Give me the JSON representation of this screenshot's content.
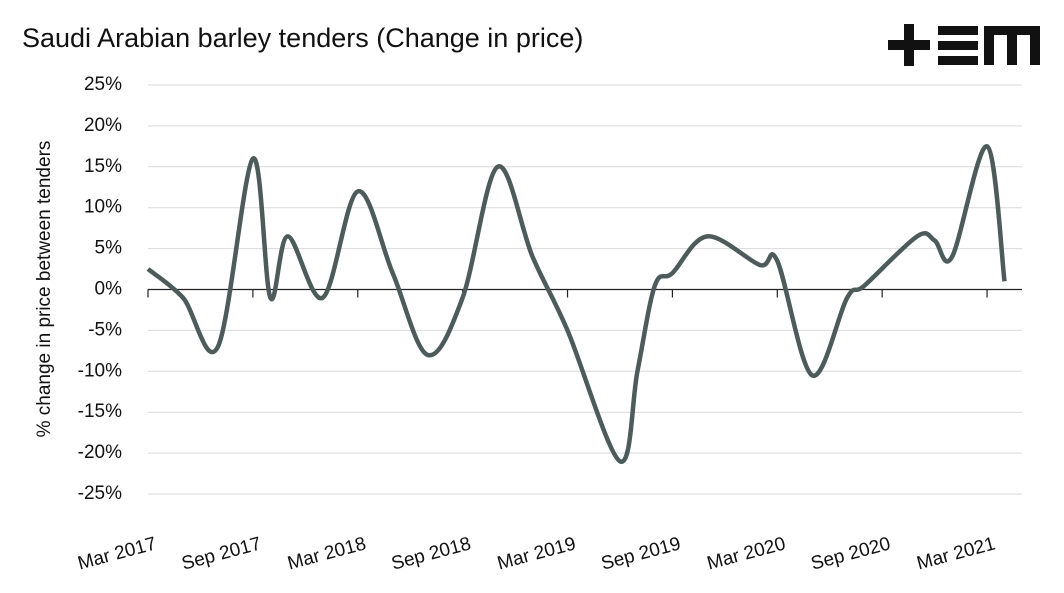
{
  "chart_data": {
    "type": "line",
    "title": "Saudi Arabian barley tenders (Change in price)",
    "y_label": "% change in price between tenders",
    "x": [
      "2017-03",
      "2017-05",
      "2017-07",
      "2017-09",
      "2017-10",
      "2017-11",
      "2018-01",
      "2018-03",
      "2018-05",
      "2018-07",
      "2018-09",
      "2018-11",
      "2019-01",
      "2019-03",
      "2019-06",
      "2019-07",
      "2019-08",
      "2019-09",
      "2019-11",
      "2020-02",
      "2020-03",
      "2020-05",
      "2020-07",
      "2020-08",
      "2020-11",
      "2020-12",
      "2021-01",
      "2021-03",
      "2021-04"
    ],
    "series": [
      {
        "name": "Change in price",
        "color": "#4d5b5b",
        "values": [
          2.5,
          -1,
          -7,
          16,
          -1,
          6.5,
          -1,
          12,
          2,
          -8,
          -1,
          15,
          4,
          -5,
          -21,
          -10,
          0.5,
          2,
          6.5,
          3,
          3.5,
          -10.5,
          -1,
          0.5,
          6.5,
          6,
          4,
          17.5,
          1
        ]
      }
    ],
    "xlim": [
      "2017-03",
      "2021-05"
    ],
    "xticks": [
      {
        "value": "2017-03",
        "label": "Mar 2017"
      },
      {
        "value": "2017-09",
        "label": "Sep 2017"
      },
      {
        "value": "2018-03",
        "label": "Mar 2018"
      },
      {
        "value": "2018-09",
        "label": "Sep 2018"
      },
      {
        "value": "2019-03",
        "label": "Mar 2019"
      },
      {
        "value": "2019-09",
        "label": "Sep 2019"
      },
      {
        "value": "2020-03",
        "label": "Mar 2020"
      },
      {
        "value": "2020-09",
        "label": "Sep 2020"
      },
      {
        "value": "2021-03",
        "label": "Mar 2021"
      }
    ],
    "ylim": [
      -25,
      25
    ],
    "yticks": [
      {
        "value": -25,
        "label": "-25%"
      },
      {
        "value": -20,
        "label": "-20%"
      },
      {
        "value": -15,
        "label": "-15%"
      },
      {
        "value": -10,
        "label": "-10%"
      },
      {
        "value": -5,
        "label": "-5%"
      },
      {
        "value": 0,
        "label": "0%"
      },
      {
        "value": 5,
        "label": "5%"
      },
      {
        "value": 10,
        "label": "10%"
      },
      {
        "value": 15,
        "label": "15%"
      },
      {
        "value": 20,
        "label": "20%"
      },
      {
        "value": 25,
        "label": "25%"
      }
    ],
    "grid": true
  }
}
